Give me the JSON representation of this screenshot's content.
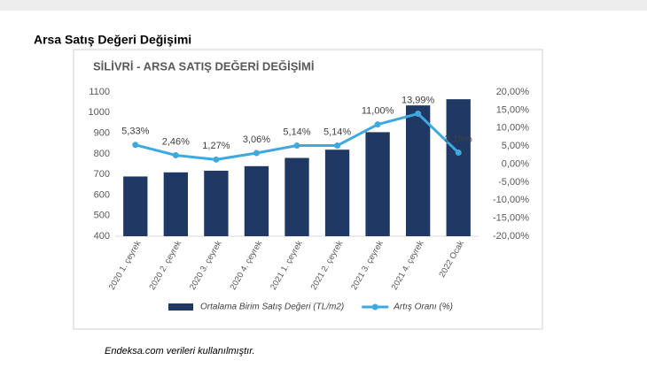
{
  "header": {
    "title": "Arsa Satış Değeri Değişimi"
  },
  "chart_data": {
    "type": "bar-line",
    "title": "SİLİVRİ - ARSA SATIŞ DEĞERİ DEĞİŞİMİ",
    "categories": [
      "2020 1. çeyrek",
      "2020 2. çeyrek",
      "2020 3. çeyrek",
      "2020 4. çeyrek",
      "2021 1. çeyrek",
      "2021 2. çeyrek",
      "2021 3. çeyrek",
      "2021 4. çeyrek",
      "2022 Ocak"
    ],
    "series": [
      {
        "name": "Ortalama Birim Satış Değeri (TL/m2)",
        "type": "bar",
        "color": "#1f3864",
        "values": [
          690,
          710,
          718,
          740,
          780,
          820,
          905,
          1035,
          1065
        ]
      },
      {
        "name": "Artış Oranı (%)",
        "type": "line",
        "axis": "y2",
        "color": "#3fa9df",
        "values": [
          5.33,
          2.46,
          1.27,
          3.06,
          5.14,
          5.14,
          11.0,
          13.99,
          3.19
        ],
        "value_labels": [
          "5,33%",
          "2,46%",
          "1,27%",
          "3,06%",
          "5,14%",
          "5,14%",
          "11,00%",
          "13,99%",
          "3,19%"
        ]
      }
    ],
    "ylim": [
      400,
      1100
    ],
    "yticks": [
      400,
      500,
      600,
      700,
      800,
      900,
      1000,
      1100
    ],
    "y2lim": [
      -20,
      20
    ],
    "y2ticks": [
      {
        "value": -20,
        "label": "-20,00%"
      },
      {
        "value": -15,
        "label": "-15,00%"
      },
      {
        "value": -10,
        "label": "-10,00%"
      },
      {
        "value": -5,
        "label": "-5,00%"
      },
      {
        "value": 0,
        "label": "0,00%"
      },
      {
        "value": 5,
        "label": "5,00%"
      },
      {
        "value": 10,
        "label": "10,00%"
      },
      {
        "value": 15,
        "label": "15,00%"
      },
      {
        "value": 20,
        "label": "20,00%"
      }
    ],
    "grid": false,
    "legend": "bottom"
  },
  "footer": {
    "note": "Endeksa.com verileri kullanılmıştır."
  }
}
